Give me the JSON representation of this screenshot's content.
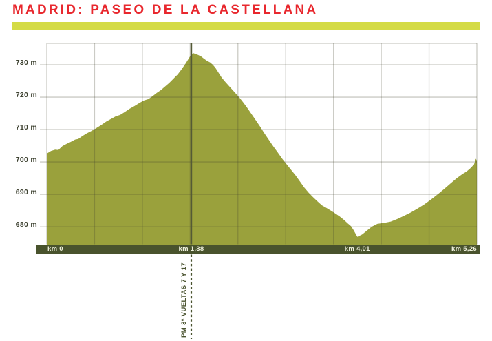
{
  "title": "MADRID: PASEO DE LA CASTELLANA",
  "colors": {
    "title_red": "#e8282e",
    "accent_lime": "#d4db45",
    "profile_olive": "#9aa13c",
    "axis_bar_dark_olive": "#49532d",
    "marker_dark_olive": "#545a36",
    "gridline": "rgba(70,70,45,0.28)",
    "km_label_cream": "#eef0dc",
    "y_label_dark": "#3d4130",
    "marker_text_olive": "#4a532f"
  },
  "chart_data": {
    "type": "area",
    "xlabel": "km",
    "ylabel": "m",
    "grid": true,
    "ylim": [
      674.6,
      736.6
    ],
    "yticks": [
      680,
      690,
      700,
      710,
      720,
      730
    ],
    "ytick_labels": [
      "680 m",
      "690 m",
      "700 m",
      "710 m",
      "720 m",
      "730 m"
    ],
    "x_gridline_count": 10,
    "x_scale_control_points": [
      [
        0,
        0
      ],
      [
        1.38,
        0.336
      ],
      [
        4.01,
        0.722
      ],
      [
        5.26,
        1
      ]
    ],
    "km_markers": [
      {
        "km": 0,
        "label": "km 0",
        "align": "left"
      },
      {
        "km": 1.38,
        "label": "km 1,38",
        "align": "center"
      },
      {
        "km": 4.01,
        "label": "km 4,01",
        "align": "center"
      },
      {
        "km": 5.26,
        "label": "km 5,26",
        "align": "right"
      }
    ],
    "marker_line": {
      "km": 1.38,
      "label": "PM 3ª VUELTAS 7 Y 17"
    },
    "series": [
      {
        "name": "elevation",
        "points": [
          [
            0.0,
            702.6
          ],
          [
            0.04,
            703.4
          ],
          [
            0.08,
            703.8
          ],
          [
            0.11,
            703.7
          ],
          [
            0.15,
            704.9
          ],
          [
            0.19,
            705.6
          ],
          [
            0.23,
            706.2
          ],
          [
            0.27,
            706.9
          ],
          [
            0.3,
            707.1
          ],
          [
            0.34,
            708.0
          ],
          [
            0.38,
            708.8
          ],
          [
            0.43,
            709.6
          ],
          [
            0.47,
            710.4
          ],
          [
            0.52,
            711.4
          ],
          [
            0.57,
            712.5
          ],
          [
            0.62,
            713.4
          ],
          [
            0.66,
            714.1
          ],
          [
            0.7,
            714.5
          ],
          [
            0.74,
            715.3
          ],
          [
            0.79,
            716.4
          ],
          [
            0.84,
            717.3
          ],
          [
            0.89,
            718.3
          ],
          [
            0.93,
            719.0
          ],
          [
            0.97,
            719.4
          ],
          [
            1.01,
            720.3
          ],
          [
            1.05,
            721.3
          ],
          [
            1.09,
            722.2
          ],
          [
            1.13,
            723.3
          ],
          [
            1.17,
            724.4
          ],
          [
            1.21,
            725.7
          ],
          [
            1.25,
            727.0
          ],
          [
            1.29,
            728.7
          ],
          [
            1.33,
            730.6
          ],
          [
            1.36,
            732.2
          ],
          [
            1.38,
            733.2
          ],
          [
            1.41,
            733.6
          ],
          [
            1.45,
            733.3
          ],
          [
            1.49,
            733.0
          ],
          [
            1.54,
            732.5
          ],
          [
            1.58,
            731.9
          ],
          [
            1.63,
            731.2
          ],
          [
            1.68,
            730.7
          ],
          [
            1.72,
            730.0
          ],
          [
            1.76,
            729.1
          ],
          [
            1.81,
            727.6
          ],
          [
            1.86,
            726.1
          ],
          [
            1.91,
            724.9
          ],
          [
            1.97,
            723.6
          ],
          [
            2.03,
            722.3
          ],
          [
            2.09,
            721.0
          ],
          [
            2.15,
            719.7
          ],
          [
            2.21,
            718.2
          ],
          [
            2.27,
            716.6
          ],
          [
            2.33,
            714.9
          ],
          [
            2.4,
            712.9
          ],
          [
            2.47,
            710.9
          ],
          [
            2.54,
            708.8
          ],
          [
            2.61,
            706.8
          ],
          [
            2.68,
            704.8
          ],
          [
            2.75,
            702.9
          ],
          [
            2.82,
            701.0
          ],
          [
            2.89,
            699.3
          ],
          [
            2.96,
            697.6
          ],
          [
            3.03,
            695.9
          ],
          [
            3.1,
            694.0
          ],
          [
            3.17,
            692.1
          ],
          [
            3.24,
            690.5
          ],
          [
            3.31,
            689.1
          ],
          [
            3.38,
            687.8
          ],
          [
            3.45,
            686.6
          ],
          [
            3.52,
            685.8
          ],
          [
            3.59,
            685.0
          ],
          [
            3.66,
            684.1
          ],
          [
            3.73,
            683.2
          ],
          [
            3.8,
            682.1
          ],
          [
            3.86,
            681.0
          ],
          [
            3.91,
            680.2
          ],
          [
            3.95,
            679.0
          ],
          [
            4.01,
            676.9
          ],
          [
            4.06,
            677.6
          ],
          [
            4.11,
            678.8
          ],
          [
            4.16,
            680.0
          ],
          [
            4.22,
            680.9
          ],
          [
            4.29,
            681.2
          ],
          [
            4.36,
            681.6
          ],
          [
            4.43,
            682.4
          ],
          [
            4.5,
            683.4
          ],
          [
            4.57,
            684.4
          ],
          [
            4.64,
            685.6
          ],
          [
            4.71,
            686.9
          ],
          [
            4.78,
            688.4
          ],
          [
            4.85,
            690.0
          ],
          [
            4.92,
            691.7
          ],
          [
            4.99,
            693.5
          ],
          [
            5.05,
            695.0
          ],
          [
            5.11,
            696.3
          ],
          [
            5.15,
            697.0
          ],
          [
            5.19,
            698.0
          ],
          [
            5.23,
            699.2
          ],
          [
            5.25,
            701.0
          ],
          [
            5.26,
            700.4
          ]
        ]
      }
    ]
  }
}
